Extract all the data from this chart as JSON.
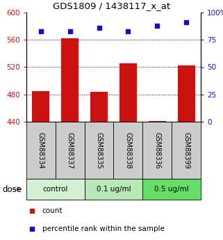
{
  "title": "GDS1809 / 1438117_x_at",
  "samples": [
    "GSM88334",
    "GSM88337",
    "GSM88335",
    "GSM88338",
    "GSM88336",
    "GSM88399"
  ],
  "bar_values": [
    485,
    562,
    484,
    526,
    441,
    523
  ],
  "scatter_values": [
    83,
    83,
    86,
    83,
    88,
    91
  ],
  "ylim_left": [
    440,
    600
  ],
  "ylim_right": [
    0,
    100
  ],
  "yticks_left": [
    440,
    480,
    520,
    560,
    600
  ],
  "yticks_right": [
    0,
    25,
    50,
    75,
    100
  ],
  "ytick_labels_right": [
    "0",
    "25",
    "50",
    "75",
    "100%"
  ],
  "bar_color": "#cc1111",
  "scatter_color": "#1111cc",
  "groups": [
    {
      "label": "control",
      "indices": [
        0,
        1
      ],
      "color": "#d4f0d4"
    },
    {
      "label": "0.1 ug/ml",
      "indices": [
        2,
        3
      ],
      "color": "#b8e8b8"
    },
    {
      "label": "0.5 ug/ml",
      "indices": [
        4,
        5
      ],
      "color": "#66dd66"
    }
  ],
  "dose_label": "dose",
  "legend_count": "count",
  "legend_percentile": "percentile rank within the sample",
  "sample_box_color": "#cccccc",
  "grid_yticks": [
    480,
    520,
    560
  ]
}
